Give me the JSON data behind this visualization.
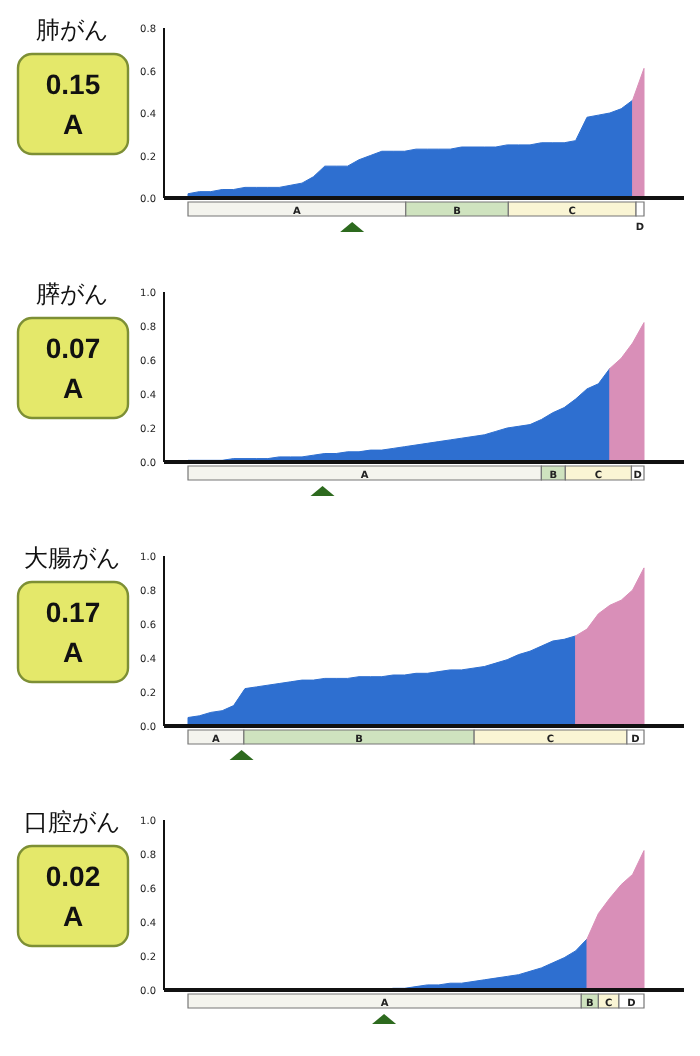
{
  "chart_data": [
    {
      "type": "area",
      "title": "肺がん",
      "annotations": [
        "0.15",
        "A",
        "A",
        "B",
        "C",
        "D"
      ],
      "categories": [
        null,
        null,
        null,
        null,
        null,
        null,
        null,
        null,
        null,
        null,
        null,
        null,
        null,
        null,
        null,
        null,
        null,
        null,
        null,
        null,
        null,
        null,
        null,
        null,
        null,
        null,
        null,
        null,
        null,
        null,
        null,
        null,
        null,
        null,
        null,
        null,
        null,
        null,
        null,
        null,
        null
      ],
      "series": [
        {
          "color": "#2e6fd0",
          "values": [
            0.02,
            0.03,
            0.03,
            0.04,
            0.04,
            0.05,
            0.05,
            0.05,
            0.05,
            0.06,
            0.07,
            0.1,
            0.15,
            0.15,
            0.15,
            0.18,
            0.2,
            0.22,
            0.22,
            0.22,
            0.23,
            0.23,
            0.23,
            0.23,
            0.24,
            0.24,
            0.24,
            0.24,
            0.25,
            0.25,
            0.25,
            0.26,
            0.26,
            0.26,
            0.27,
            0.38,
            0.39,
            0.4,
            0.42,
            0.46,
            null
          ]
        },
        {
          "color": "#d98fb8",
          "values": [
            null,
            null,
            null,
            null,
            null,
            null,
            null,
            null,
            null,
            null,
            null,
            null,
            null,
            null,
            null,
            null,
            null,
            null,
            null,
            null,
            null,
            null,
            null,
            null,
            null,
            null,
            null,
            null,
            null,
            null,
            null,
            null,
            null,
            null,
            null,
            null,
            null,
            null,
            null,
            0.46,
            0.61
          ]
        }
      ],
      "ylim": [
        0,
        0.8
      ],
      "yticks": [
        {
          "value": 0,
          "label": "0.0"
        },
        {
          "value": 0.2,
          "label": "0.2"
        },
        {
          "value": 0.4,
          "label": "0.4"
        },
        {
          "value": 0.6,
          "label": "0.6"
        },
        {
          "value": 0.8,
          "label": "0.8"
        }
      ]
    },
    {
      "type": "area",
      "title": "膵がん",
      "annotations": [
        "0.07",
        "A",
        "A",
        "B",
        "C",
        "D"
      ],
      "categories": [
        null,
        null,
        null,
        null,
        null,
        null,
        null,
        null,
        null,
        null,
        null,
        null,
        null,
        null,
        null,
        null,
        null,
        null,
        null,
        null,
        null,
        null,
        null,
        null,
        null,
        null,
        null,
        null,
        null,
        null,
        null,
        null,
        null,
        null,
        null,
        null,
        null,
        null,
        null,
        null,
        null
      ],
      "series": [
        {
          "color": "#2e6fd0",
          "values": [
            0.01,
            0.01,
            0.01,
            0.01,
            0.02,
            0.02,
            0.02,
            0.02,
            0.03,
            0.03,
            0.03,
            0.04,
            0.05,
            0.05,
            0.06,
            0.06,
            0.07,
            0.07,
            0.08,
            0.09,
            0.1,
            0.11,
            0.12,
            0.13,
            0.14,
            0.15,
            0.16,
            0.18,
            0.2,
            0.21,
            0.22,
            0.25,
            0.29,
            0.32,
            0.37,
            0.43,
            0.46,
            0.55,
            null,
            null,
            null
          ]
        },
        {
          "color": "#d98fb8",
          "values": [
            null,
            null,
            null,
            null,
            null,
            null,
            null,
            null,
            null,
            null,
            null,
            null,
            null,
            null,
            null,
            null,
            null,
            null,
            null,
            null,
            null,
            null,
            null,
            null,
            null,
            null,
            null,
            null,
            null,
            null,
            null,
            null,
            null,
            null,
            null,
            null,
            null,
            0.55,
            0.61,
            0.7,
            0.82
          ]
        }
      ],
      "ylim": [
        0,
        1
      ],
      "yticks": [
        {
          "value": 0,
          "label": "0.0"
        },
        {
          "value": 0.2,
          "label": "0.2"
        },
        {
          "value": 0.4,
          "label": "0.4"
        },
        {
          "value": 0.6,
          "label": "0.6"
        },
        {
          "value": 0.8,
          "label": "0.8"
        },
        {
          "value": 1,
          "label": "1.0"
        }
      ]
    },
    {
      "type": "area",
      "title": "大腸がん",
      "annotations": [
        "0.17",
        "A",
        "A",
        "B",
        "C",
        "D"
      ],
      "categories": [
        null,
        null,
        null,
        null,
        null,
        null,
        null,
        null,
        null,
        null,
        null,
        null,
        null,
        null,
        null,
        null,
        null,
        null,
        null,
        null,
        null,
        null,
        null,
        null,
        null,
        null,
        null,
        null,
        null,
        null,
        null,
        null,
        null,
        null,
        null,
        null,
        null,
        null,
        null,
        null,
        null
      ],
      "series": [
        {
          "color": "#2e6fd0",
          "values": [
            0.05,
            0.06,
            0.08,
            0.09,
            0.12,
            0.22,
            0.23,
            0.24,
            0.25,
            0.26,
            0.27,
            0.27,
            0.28,
            0.28,
            0.28,
            0.29,
            0.29,
            0.29,
            0.3,
            0.3,
            0.31,
            0.31,
            0.32,
            0.33,
            0.33,
            0.34,
            0.35,
            0.37,
            0.39,
            0.42,
            0.44,
            0.47,
            0.5,
            0.51,
            0.53,
            null,
            null,
            null,
            null,
            null,
            null
          ]
        },
        {
          "color": "#d98fb8",
          "values": [
            null,
            null,
            null,
            null,
            null,
            null,
            null,
            null,
            null,
            null,
            null,
            null,
            null,
            null,
            null,
            null,
            null,
            null,
            null,
            null,
            null,
            null,
            null,
            null,
            null,
            null,
            null,
            null,
            null,
            null,
            null,
            null,
            null,
            null,
            0.53,
            0.57,
            0.66,
            0.71,
            0.74,
            0.8,
            0.93
          ]
        }
      ],
      "ylim": [
        0,
        1
      ],
      "yticks": [
        {
          "value": 0,
          "label": "0.0"
        },
        {
          "value": 0.2,
          "label": "0.2"
        },
        {
          "value": 0.4,
          "label": "0.4"
        },
        {
          "value": 0.6,
          "label": "0.6"
        },
        {
          "value": 0.8,
          "label": "0.8"
        },
        {
          "value": 1,
          "label": "1.0"
        }
      ]
    },
    {
      "type": "area",
      "title": "口腔がん",
      "annotations": [
        "0.02",
        "A",
        "A",
        "B",
        "C",
        "D"
      ],
      "categories": [
        null,
        null,
        null,
        null,
        null,
        null,
        null,
        null,
        null,
        null,
        null,
        null,
        null,
        null,
        null,
        null,
        null,
        null,
        null,
        null,
        null,
        null,
        null,
        null,
        null,
        null,
        null,
        null,
        null,
        null,
        null,
        null,
        null,
        null,
        null,
        null,
        null,
        null,
        null,
        null,
        null
      ],
      "series": [
        {
          "color": "#2e6fd0",
          "values": [
            0,
            0,
            0,
            0,
            0,
            0,
            0,
            0,
            0,
            0,
            0,
            0,
            0,
            0,
            0,
            0,
            0,
            0,
            0.01,
            0.01,
            0.02,
            0.03,
            0.03,
            0.04,
            0.04,
            0.05,
            0.06,
            0.07,
            0.08,
            0.09,
            0.11,
            0.13,
            0.16,
            0.19,
            0.23,
            0.3,
            null,
            null,
            null,
            null,
            null
          ]
        },
        {
          "color": "#d98fb8",
          "values": [
            null,
            null,
            null,
            null,
            null,
            null,
            null,
            null,
            null,
            null,
            null,
            null,
            null,
            null,
            null,
            null,
            null,
            null,
            null,
            null,
            null,
            null,
            null,
            null,
            null,
            null,
            null,
            null,
            null,
            null,
            null,
            null,
            null,
            null,
            null,
            0.3,
            0.45,
            0.54,
            0.62,
            0.68,
            0.82
          ]
        }
      ],
      "ylim": [
        0,
        1
      ],
      "yticks": [
        {
          "value": 0,
          "label": "0.0"
        },
        {
          "value": 0.2,
          "label": "0.2"
        },
        {
          "value": 0.4,
          "label": "0.4"
        },
        {
          "value": 0.6,
          "label": "0.6"
        },
        {
          "value": 0.8,
          "label": "0.8"
        },
        {
          "value": 1,
          "label": "1.0"
        }
      ]
    }
  ]
}
